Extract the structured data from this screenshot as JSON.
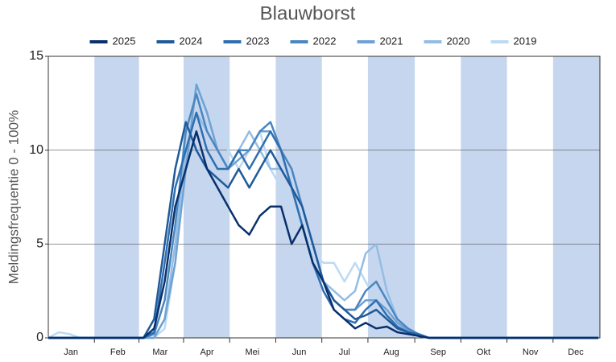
{
  "chart_data": {
    "type": "line",
    "title": "Blauwborst",
    "y_label": "Meldingsfrequentie 0 - 100%",
    "x": [
      0,
      7,
      14,
      21,
      28,
      35,
      42,
      49,
      56,
      63,
      70,
      77,
      84,
      91,
      98,
      105,
      112,
      119,
      126,
      133,
      140,
      147,
      154,
      161,
      168,
      175,
      182,
      189,
      196,
      203,
      210,
      217,
      224,
      231,
      238,
      245,
      252,
      259,
      266,
      273,
      280,
      287,
      294,
      301,
      308,
      315,
      322,
      329,
      336,
      343,
      350,
      357,
      364
    ],
    "xlim": [
      0,
      365
    ],
    "xticks": [
      {
        "value": 15,
        "label": "Jan"
      },
      {
        "value": 46,
        "label": "Feb"
      },
      {
        "value": 74,
        "label": "Mar"
      },
      {
        "value": 105,
        "label": "Apr"
      },
      {
        "value": 135,
        "label": "Mei"
      },
      {
        "value": 166,
        "label": "Jun"
      },
      {
        "value": 196,
        "label": "Jul"
      },
      {
        "value": 227,
        "label": "Aug"
      },
      {
        "value": 258,
        "label": "Sep"
      },
      {
        "value": 288,
        "label": "Okt"
      },
      {
        "value": 319,
        "label": "Nov"
      },
      {
        "value": 349,
        "label": "Dec"
      }
    ],
    "ylim": [
      0,
      15
    ],
    "yticks": [
      0,
      5,
      10,
      15
    ],
    "grid": true,
    "band_color": "#c6d6ee",
    "series": [
      {
        "name": "2025",
        "color": "#08306b",
        "values": [
          0,
          0,
          0,
          0,
          0,
          0,
          0,
          0,
          0,
          0,
          0.5,
          3,
          7,
          9,
          11,
          9,
          8,
          7,
          6,
          5.5,
          6.5,
          7,
          7,
          5,
          6,
          4,
          3,
          1.5,
          1,
          0.5,
          0.8,
          0.5,
          0.6,
          0.3,
          0.2,
          0.1,
          0,
          0,
          0,
          0,
          0,
          0,
          0,
          0,
          0,
          0,
          0,
          0,
          0,
          0,
          0,
          0,
          0
        ]
      },
      {
        "name": "2024",
        "color": "#1f5a9a",
        "values": [
          0,
          0,
          0,
          0,
          0,
          0,
          0,
          0,
          0,
          0,
          1,
          5,
          9,
          11.5,
          10,
          9,
          8.5,
          8,
          9,
          8,
          9,
          10,
          9,
          8,
          7,
          5,
          3,
          2,
          1.5,
          1,
          1.2,
          1.5,
          1,
          0.5,
          0.3,
          0.1,
          0,
          0,
          0,
          0,
          0,
          0,
          0,
          0,
          0,
          0,
          0,
          0,
          0,
          0,
          0,
          0,
          0
        ]
      },
      {
        "name": "2023",
        "color": "#2f6fb0",
        "values": [
          0,
          0,
          0,
          0,
          0,
          0,
          0,
          0,
          0,
          0,
          0.3,
          4,
          8,
          10,
          12,
          10,
          9,
          9,
          10,
          9,
          10,
          11,
          10,
          8,
          6,
          4,
          2.5,
          1.5,
          1,
          0.8,
          1.5,
          2,
          1.2,
          0.6,
          0.3,
          0.2,
          0,
          0,
          0,
          0,
          0,
          0,
          0,
          0,
          0,
          0,
          0,
          0,
          0,
          0,
          0,
          0,
          0
        ]
      },
      {
        "name": "2022",
        "color": "#4a86c0",
        "values": [
          0,
          0,
          0,
          0,
          0,
          0,
          0,
          0,
          0,
          0,
          0.2,
          2,
          6,
          11,
          13,
          11,
          10,
          9,
          10,
          10,
          11,
          11.5,
          10,
          9,
          7,
          5,
          3,
          2,
          1.5,
          1.5,
          2.5,
          3,
          2,
          1,
          0.5,
          0.2,
          0,
          0,
          0,
          0,
          0,
          0,
          0,
          0,
          0,
          0,
          0,
          0,
          0,
          0,
          0,
          0,
          0
        ]
      },
      {
        "name": "2021",
        "color": "#6fa2d2",
        "values": [
          0,
          0,
          0,
          0,
          0,
          0,
          0,
          0,
          0,
          0,
          0,
          1,
          4,
          9,
          13.5,
          12,
          10,
          9,
          9.5,
          10,
          11,
          11,
          10,
          8,
          6,
          4,
          3,
          2,
          1.5,
          1.5,
          2,
          2,
          1.5,
          0.8,
          0.4,
          0.2,
          0,
          0,
          0,
          0,
          0,
          0,
          0,
          0,
          0,
          0,
          0,
          0,
          0,
          0,
          0,
          0,
          0
        ]
      },
      {
        "name": "2020",
        "color": "#93bde4",
        "values": [
          0,
          0,
          0,
          0,
          0,
          0,
          0,
          0,
          0,
          0,
          0,
          1,
          5,
          10,
          12,
          11,
          10,
          9,
          10,
          11,
          10,
          9,
          9,
          8,
          6,
          4,
          3,
          2.5,
          2,
          2.5,
          4.5,
          5,
          2.5,
          1,
          0.4,
          0.1,
          0,
          0,
          0,
          0,
          0,
          0,
          0,
          0,
          0,
          0,
          0,
          0,
          0,
          0,
          0,
          0,
          0
        ]
      },
      {
        "name": "2019",
        "color": "#bcdaf3",
        "values": [
          0,
          0.3,
          0.2,
          0,
          0,
          0,
          0,
          0,
          0,
          0,
          0,
          0.5,
          4,
          12,
          14,
          11,
          12,
          10,
          9,
          10,
          11,
          9,
          8,
          7,
          6,
          4.5,
          4,
          4,
          3,
          4,
          3,
          2,
          1,
          0.5,
          0.2,
          0.1,
          0,
          0,
          0,
          0,
          0,
          0,
          0,
          0,
          0,
          0,
          0,
          0,
          0,
          0,
          0,
          0,
          0
        ]
      }
    ]
  }
}
